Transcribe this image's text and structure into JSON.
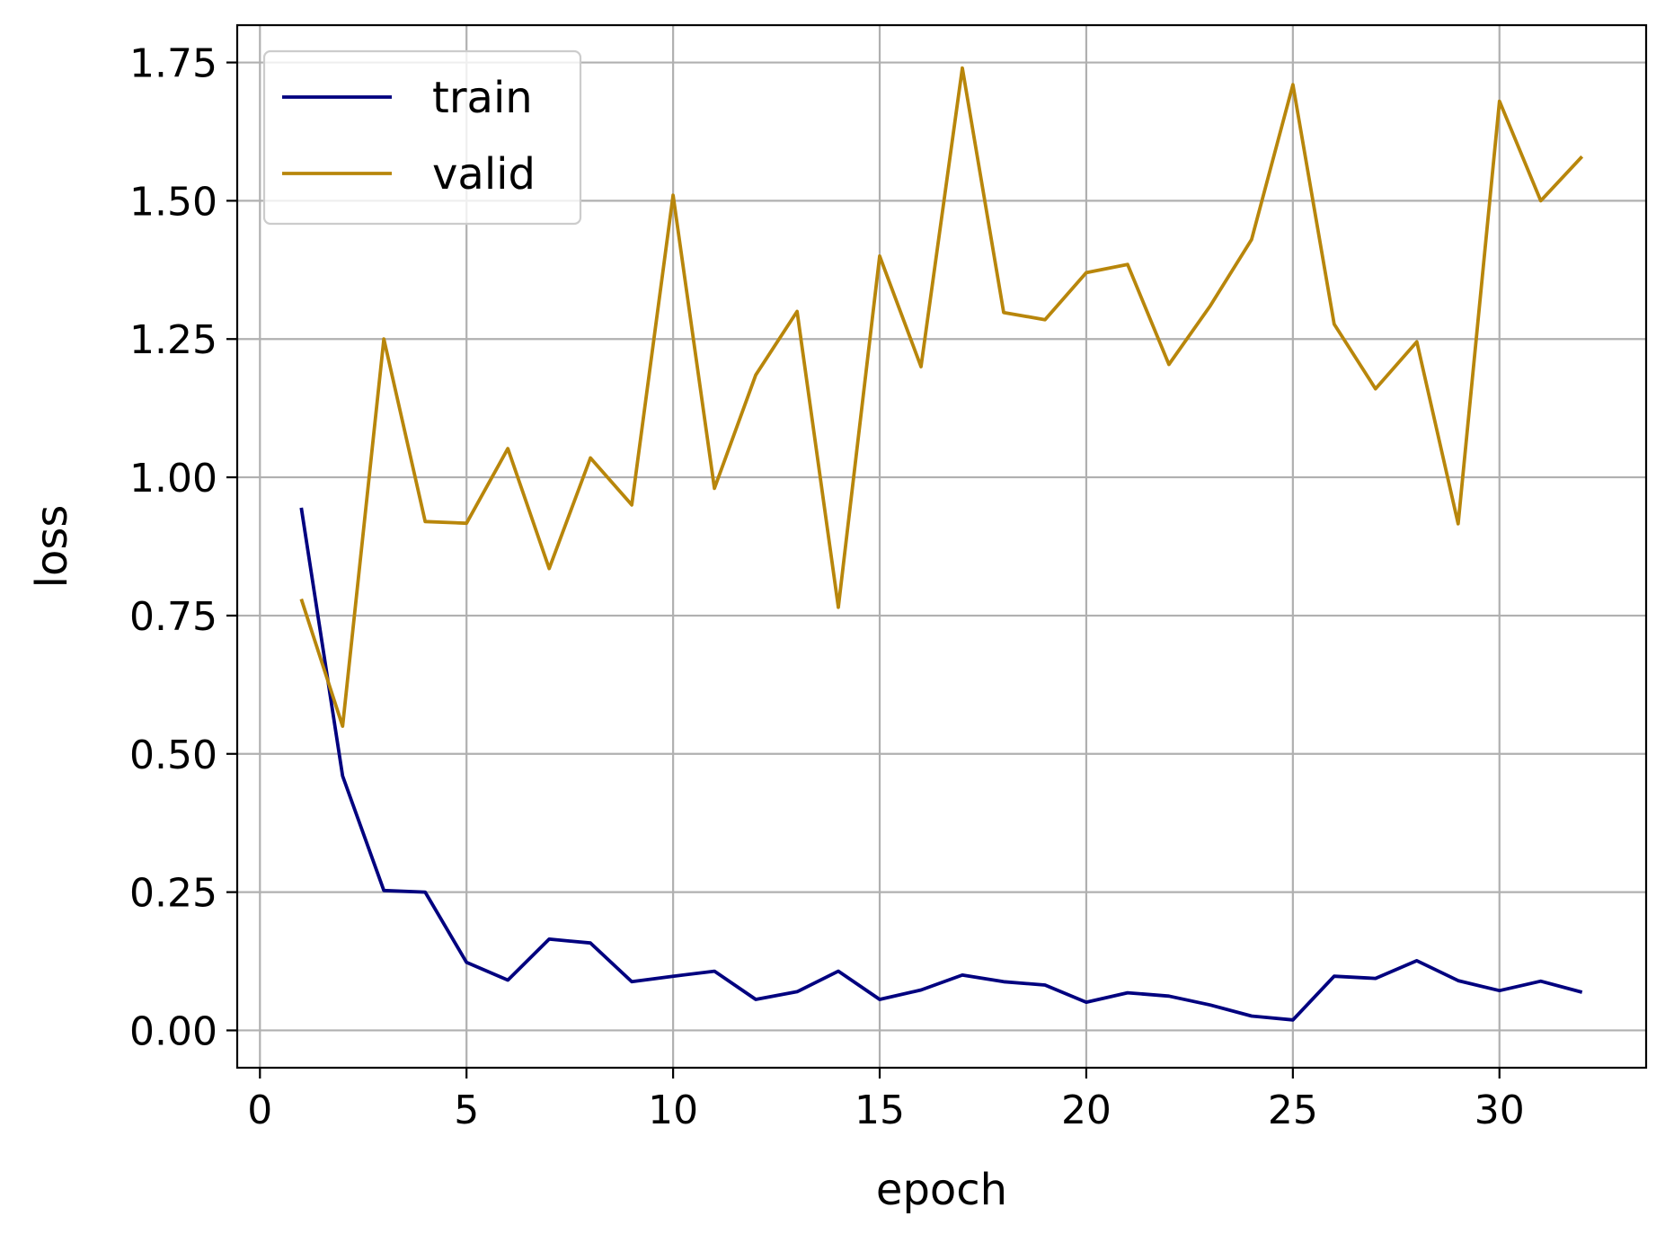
{
  "chart_data": {
    "type": "line",
    "title": "",
    "xlabel": "epoch",
    "ylabel": "loss",
    "xlim": [
      -0.55,
      33.55
    ],
    "ylim": [
      -0.0675,
      1.8175
    ],
    "xticks": [
      0,
      5,
      10,
      15,
      20,
      25,
      30
    ],
    "xtick_labels": [
      "0",
      "5",
      "10",
      "15",
      "20",
      "25",
      "30"
    ],
    "yticks": [
      0,
      0.25,
      0.5,
      0.75,
      1.0,
      1.25,
      1.5,
      1.75
    ],
    "ytick_labels": [
      "0.00",
      "0.25",
      "0.50",
      "0.75",
      "1.00",
      "1.25",
      "1.50",
      "1.75"
    ],
    "grid": true,
    "legend_position": "top-left",
    "x": [
      1,
      2,
      3,
      4,
      5,
      6,
      7,
      8,
      9,
      10,
      11,
      12,
      13,
      14,
      15,
      16,
      17,
      18,
      19,
      20,
      21,
      22,
      23,
      24,
      25,
      26,
      27,
      28,
      29,
      30,
      31,
      32
    ],
    "series": [
      {
        "name": "train",
        "color": "#00007f",
        "values": [
          0.945,
          0.46,
          0.253,
          0.25,
          0.123,
          0.091,
          0.165,
          0.158,
          0.088,
          0.098,
          0.107,
          0.056,
          0.07,
          0.107,
          0.056,
          0.073,
          0.1,
          0.088,
          0.082,
          0.051,
          0.068,
          0.062,
          0.046,
          0.026,
          0.019,
          0.098,
          0.094,
          0.126,
          0.09,
          0.072,
          0.089,
          0.069
        ]
      },
      {
        "name": "valid",
        "color": "#b8860b",
        "values": [
          0.78,
          0.55,
          1.25,
          0.92,
          0.917,
          1.052,
          0.835,
          1.035,
          0.95,
          1.51,
          0.98,
          1.185,
          1.3,
          0.765,
          1.4,
          1.2,
          1.74,
          1.298,
          1.285,
          1.37,
          1.385,
          1.204,
          1.31,
          1.43,
          1.71,
          1.277,
          1.16,
          1.245,
          0.916,
          1.68,
          1.5,
          1.58
        ]
      }
    ]
  }
}
